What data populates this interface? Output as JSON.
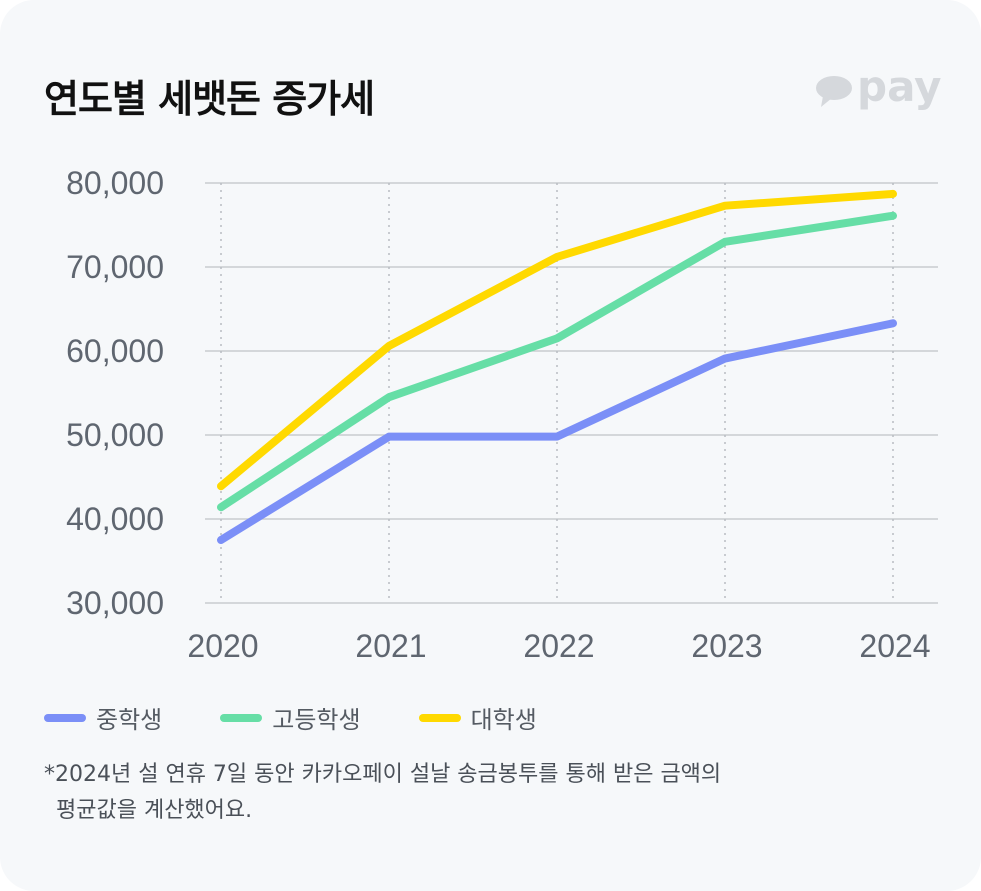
{
  "title": "연도별 세뱃돈 증가세",
  "logo": {
    "text": "pay",
    "icon": "speech-bubble-icon"
  },
  "chart_data": {
    "type": "line",
    "title": "연도별 세뱃돈 증가세",
    "x": [
      "2020",
      "2021",
      "2022",
      "2023",
      "2024"
    ],
    "y_ticks": [
      "80,000",
      "70,000",
      "60,000",
      "50,000",
      "40,000",
      "30,000"
    ],
    "y_tick_values": [
      80000,
      70000,
      60000,
      50000,
      40000,
      30000
    ],
    "ylim": [
      30000,
      80000
    ],
    "grid": "horizontal solid, vertical dotted",
    "legend_position": "bottom-left",
    "series": [
      {
        "name": "중학생",
        "color": "#7b8ff7",
        "values": [
          37500,
          49800,
          49800,
          59100,
          63300
        ]
      },
      {
        "name": "고등학생",
        "color": "#66dea6",
        "values": [
          41400,
          54500,
          61500,
          73000,
          76100
        ]
      },
      {
        "name": "대학생",
        "color": "#ffd900",
        "values": [
          43900,
          60600,
          71200,
          77300,
          78700
        ]
      }
    ]
  },
  "footnote": {
    "line1": "*2024년 설 연휴 7일 동안 카카오페이 설날 송금봉투를 통해 받은 금액의",
    "line2": "평균값을 계산했어요."
  }
}
